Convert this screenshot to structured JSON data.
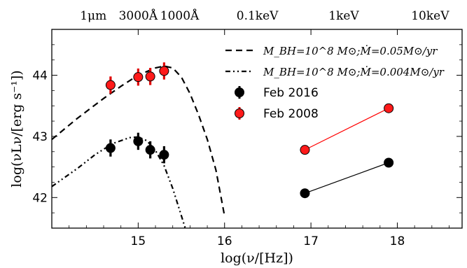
{
  "chart_data": {
    "type": "scatter",
    "title": "",
    "xlabel": "log(ν/[Hz])",
    "ylabel": "log(νLν/[erg s⁻¹])",
    "xlim": [
      14.0,
      18.75
    ],
    "ylim": [
      41.5,
      44.75
    ],
    "grid": false,
    "legend_position": "top-right",
    "x_ticks": [
      {
        "value": 15,
        "label": "15"
      },
      {
        "value": 16,
        "label": "16"
      },
      {
        "value": 17,
        "label": "17"
      },
      {
        "value": 18,
        "label": "18"
      }
    ],
    "y_ticks": [
      {
        "value": 42,
        "label": "42"
      },
      {
        "value": 43,
        "label": "43"
      },
      {
        "value": 44,
        "label": "44"
      }
    ],
    "top_axis_ticks": [
      {
        "value": 14.48,
        "label": "1μm"
      },
      {
        "value": 15.0,
        "label": "3000Å"
      },
      {
        "value": 15.48,
        "label": "1000Å"
      },
      {
        "value": 16.38,
        "label": "0.1keV"
      },
      {
        "value": 17.38,
        "label": "1keV"
      },
      {
        "value": 18.38,
        "label": "10keV"
      }
    ],
    "series": [
      {
        "name": "M_BH=10^8 M⊙;Ṁ=0.05M⊙/yr",
        "kind": "line",
        "dash": "dashed",
        "color": "#000000",
        "x": [
          14.0,
          14.3,
          14.6,
          14.8,
          15.0,
          15.2,
          15.3,
          15.4,
          15.5,
          15.6,
          15.7,
          15.8,
          15.9,
          16.0
        ],
        "y": [
          42.95,
          43.3,
          43.62,
          43.82,
          44.0,
          44.12,
          44.15,
          44.12,
          43.97,
          43.7,
          43.35,
          42.95,
          42.45,
          41.7
        ]
      },
      {
        "name": "M_BH=10^8 M⊙;Ṁ=0.004M⊙/yr",
        "kind": "line",
        "dash": "dashdotdot",
        "color": "#000000",
        "x": [
          14.0,
          14.3,
          14.5,
          14.7,
          14.9,
          15.0,
          15.1,
          15.2,
          15.3,
          15.4,
          15.5,
          15.6
        ],
        "y": [
          42.18,
          42.48,
          42.7,
          42.88,
          42.98,
          42.99,
          42.93,
          42.77,
          42.52,
          42.15,
          41.7,
          41.25
        ]
      },
      {
        "name": "Feb 2016",
        "kind": "errorbar",
        "color": "#000000",
        "x": [
          14.68,
          15.0,
          15.14,
          15.3
        ],
        "y": [
          42.81,
          42.92,
          42.78,
          42.7
        ],
        "yerr": [
          0.14,
          0.14,
          0.14,
          0.14
        ]
      },
      {
        "name": "Feb 2008",
        "kind": "errorbar",
        "color": "#ff0000",
        "x": [
          14.68,
          15.0,
          15.14,
          15.3
        ],
        "y": [
          43.84,
          43.97,
          43.98,
          44.07
        ],
        "yerr": [
          0.14,
          0.14,
          0.14,
          0.14
        ]
      },
      {
        "name": "",
        "kind": "xray-line",
        "color": "#000000",
        "x": [
          16.93,
          17.9
        ],
        "y": [
          42.07,
          42.57
        ]
      },
      {
        "name": "",
        "kind": "xray-line",
        "color": "#ff0000",
        "x": [
          16.93,
          17.9
        ],
        "y": [
          42.78,
          43.46
        ]
      }
    ]
  }
}
